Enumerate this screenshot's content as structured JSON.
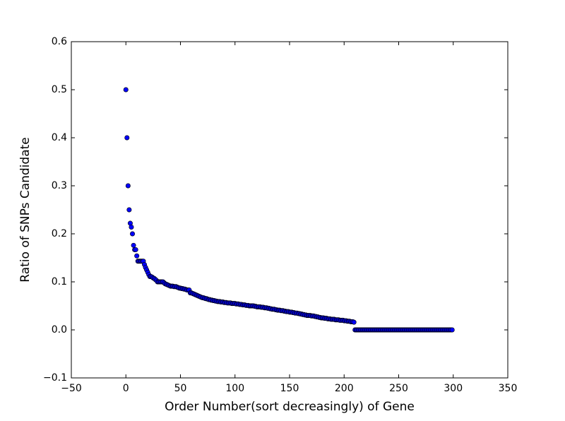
{
  "chart_data": {
    "type": "scatter",
    "xlabel": "Order Number(sort decreasingly) of Gene",
    "ylabel": "Ratio of SNPs Candidate",
    "xlim": [
      -50,
      350
    ],
    "ylim": [
      -0.1,
      0.6
    ],
    "xticks": [
      {
        "value": -50,
        "label": "−50"
      },
      0,
      50,
      100,
      150,
      200,
      250,
      300,
      350
    ],
    "yticks": [
      {
        "value": -0.1,
        "label": "−0.1"
      },
      {
        "value": 0,
        "label": "0.0"
      },
      0.1,
      0.2,
      0.3,
      0.4,
      0.5,
      0.6
    ],
    "grid": false,
    "series": [
      {
        "color": "#0000ff",
        "x": [
          0,
          1,
          2,
          3,
          4,
          5,
          6,
          7,
          8,
          9,
          10,
          11,
          12,
          13,
          14,
          15,
          16,
          17,
          18,
          19,
          20,
          21,
          22,
          23,
          24,
          25,
          26,
          27,
          28,
          29,
          30,
          31,
          32,
          33,
          34,
          35,
          36,
          37,
          38,
          39,
          40,
          41,
          42,
          43,
          44,
          45,
          46,
          47,
          48,
          49,
          50,
          51,
          52,
          53,
          54,
          55,
          56,
          57,
          58,
          59,
          60,
          61,
          62,
          63,
          64,
          65,
          66,
          67,
          68,
          69,
          70,
          71,
          72,
          73,
          74,
          75,
          76,
          77,
          78,
          79,
          80,
          81,
          82,
          83,
          84,
          85,
          86,
          87,
          88,
          89,
          90,
          91,
          92,
          93,
          94,
          95,
          96,
          97,
          98,
          99,
          100,
          101,
          102,
          103,
          104,
          105,
          106,
          107,
          108,
          109,
          110,
          111,
          112,
          113,
          114,
          115,
          116,
          117,
          118,
          119,
          120,
          121,
          122,
          123,
          124,
          125,
          126,
          127,
          128,
          129,
          130,
          131,
          132,
          133,
          134,
          135,
          136,
          137,
          138,
          139,
          140,
          141,
          142,
          143,
          144,
          145,
          146,
          147,
          148,
          149,
          150,
          151,
          152,
          153,
          154,
          155,
          156,
          157,
          158,
          159,
          160,
          161,
          162,
          163,
          164,
          165,
          166,
          167,
          168,
          169,
          170,
          171,
          172,
          173,
          174,
          175,
          176,
          177,
          178,
          179,
          180,
          181,
          182,
          183,
          184,
          185,
          186,
          187,
          188,
          189,
          190,
          191,
          192,
          193,
          194,
          195,
          196,
          197,
          198,
          199,
          200,
          201,
          202,
          203,
          204,
          205,
          206,
          207,
          208,
          209,
          210,
          211,
          212,
          213,
          214,
          215,
          216,
          217,
          218,
          219,
          220,
          221,
          222,
          223,
          224,
          225,
          226,
          227,
          228,
          229,
          230,
          231,
          232,
          233,
          234,
          235,
          236,
          237,
          238,
          239,
          240,
          241,
          242,
          243,
          244,
          245,
          246,
          247,
          248,
          249,
          250,
          251,
          252,
          253,
          254,
          255,
          256,
          257,
          258,
          259,
          260,
          261,
          262,
          263,
          264,
          265,
          266,
          267,
          268,
          269,
          270,
          271,
          272,
          273,
          274,
          275,
          276,
          277,
          278,
          279,
          280,
          281,
          282,
          283,
          284,
          285,
          286,
          287,
          288,
          289,
          290,
          291,
          292,
          293,
          294,
          295,
          296,
          297,
          298,
          299
        ],
        "values": [
          0.5,
          0.4,
          0.3,
          0.25,
          0.222,
          0.214,
          0.2,
          0.176,
          0.167,
          0.167,
          0.154,
          0.143,
          0.143,
          0.143,
          0.143,
          0.143,
          0.143,
          0.136,
          0.13,
          0.125,
          0.12,
          0.115,
          0.111,
          0.111,
          0.11,
          0.108,
          0.107,
          0.105,
          0.103,
          0.1,
          0.1,
          0.1,
          0.1,
          0.1,
          0.1,
          0.098,
          0.096,
          0.095,
          0.094,
          0.093,
          0.092,
          0.091,
          0.091,
          0.091,
          0.09,
          0.09,
          0.09,
          0.089,
          0.088,
          0.087,
          0.087,
          0.086,
          0.086,
          0.085,
          0.085,
          0.084,
          0.083,
          0.083,
          0.083,
          0.077,
          0.077,
          0.076,
          0.075,
          0.074,
          0.073,
          0.072,
          0.071,
          0.07,
          0.069,
          0.068,
          0.067,
          0.067,
          0.066,
          0.065,
          0.065,
          0.064,
          0.063,
          0.063,
          0.062,
          0.062,
          0.061,
          0.061,
          0.06,
          0.06,
          0.059,
          0.059,
          0.059,
          0.058,
          0.058,
          0.058,
          0.057,
          0.057,
          0.057,
          0.056,
          0.056,
          0.056,
          0.056,
          0.055,
          0.055,
          0.055,
          0.055,
          0.054,
          0.054,
          0.054,
          0.053,
          0.053,
          0.053,
          0.052,
          0.052,
          0.052,
          0.051,
          0.051,
          0.051,
          0.05,
          0.05,
          0.05,
          0.05,
          0.05,
          0.049,
          0.049,
          0.048,
          0.048,
          0.048,
          0.048,
          0.047,
          0.047,
          0.047,
          0.046,
          0.046,
          0.046,
          0.045,
          0.045,
          0.044,
          0.044,
          0.043,
          0.043,
          0.043,
          0.042,
          0.042,
          0.041,
          0.041,
          0.041,
          0.04,
          0.04,
          0.04,
          0.039,
          0.039,
          0.038,
          0.038,
          0.038,
          0.037,
          0.037,
          0.037,
          0.036,
          0.036,
          0.035,
          0.035,
          0.035,
          0.034,
          0.034,
          0.033,
          0.033,
          0.032,
          0.032,
          0.031,
          0.031,
          0.03,
          0.03,
          0.03,
          0.03,
          0.029,
          0.029,
          0.029,
          0.028,
          0.028,
          0.027,
          0.027,
          0.026,
          0.026,
          0.025,
          0.025,
          0.025,
          0.024,
          0.024,
          0.024,
          0.023,
          0.023,
          0.023,
          0.022,
          0.022,
          0.022,
          0.022,
          0.021,
          0.021,
          0.021,
          0.021,
          0.02,
          0.02,
          0.02,
          0.02,
          0.019,
          0.019,
          0.019,
          0.018,
          0.018,
          0.018,
          0.017,
          0.017,
          0.017,
          0.016,
          0,
          0,
          0,
          0,
          0,
          0,
          0,
          0,
          0,
          0,
          0,
          0,
          0,
          0,
          0,
          0,
          0,
          0,
          0,
          0,
          0,
          0,
          0,
          0,
          0,
          0,
          0,
          0,
          0,
          0,
          0,
          0,
          0,
          0,
          0,
          0,
          0,
          0,
          0,
          0,
          0,
          0,
          0,
          0,
          0,
          0,
          0,
          0,
          0,
          0,
          0,
          0,
          0,
          0,
          0,
          0,
          0,
          0,
          0,
          0,
          0,
          0,
          0,
          0,
          0,
          0,
          0,
          0,
          0,
          0,
          0,
          0,
          0,
          0,
          0,
          0,
          0,
          0,
          0,
          0,
          0,
          0,
          0,
          0,
          0,
          0,
          0,
          0,
          0,
          0
        ]
      }
    ]
  }
}
